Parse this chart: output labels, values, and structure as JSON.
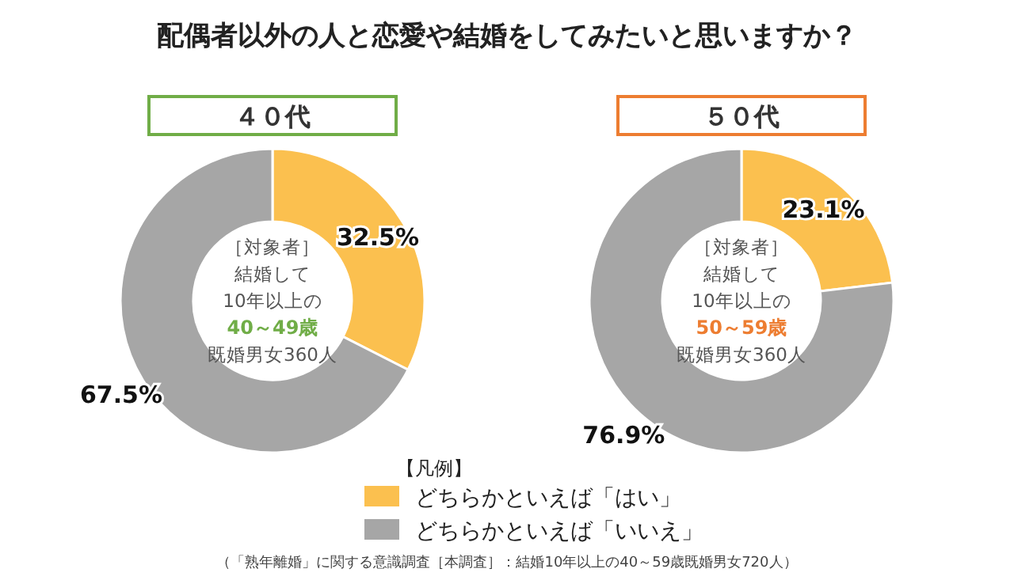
{
  "chart_data": [
    {
      "type": "donut",
      "title": "配偶者以外の人と恋愛や結婚をしてみたいと思いますか？",
      "subtitle": "４０代",
      "categories": [
        "どちらかといえば「はい」",
        "どちらかといえば「いいえ」"
      ],
      "values": [
        32.5,
        67.5
      ],
      "value_labels": [
        "32.5%",
        "67.5%"
      ],
      "colors": [
        "#fbc04f",
        "#a6a6a6"
      ],
      "legend": "bottom",
      "legend_title": "【凡例】",
      "annotations": [
        "［対象者］",
        "結婚して",
        "10年以上の",
        "40～49歳",
        "既婚男女360人"
      ]
    },
    {
      "type": "donut",
      "subtitle": "５０代",
      "values": [
        23.1,
        76.9
      ],
      "value_labels": [
        "23.1%",
        "76.9%"
      ],
      "colors": [
        "#fbc04f",
        "#a6a6a6"
      ],
      "annotations": [
        "［対象者］",
        "結婚して",
        "10年以上の",
        "50～59歳",
        "既婚男女360人",
        "（「熟年離婚」に関する意識調査［本調査］：結婚10年以上の40～59歳既婚男女720人）"
      ]
    }
  ]
}
